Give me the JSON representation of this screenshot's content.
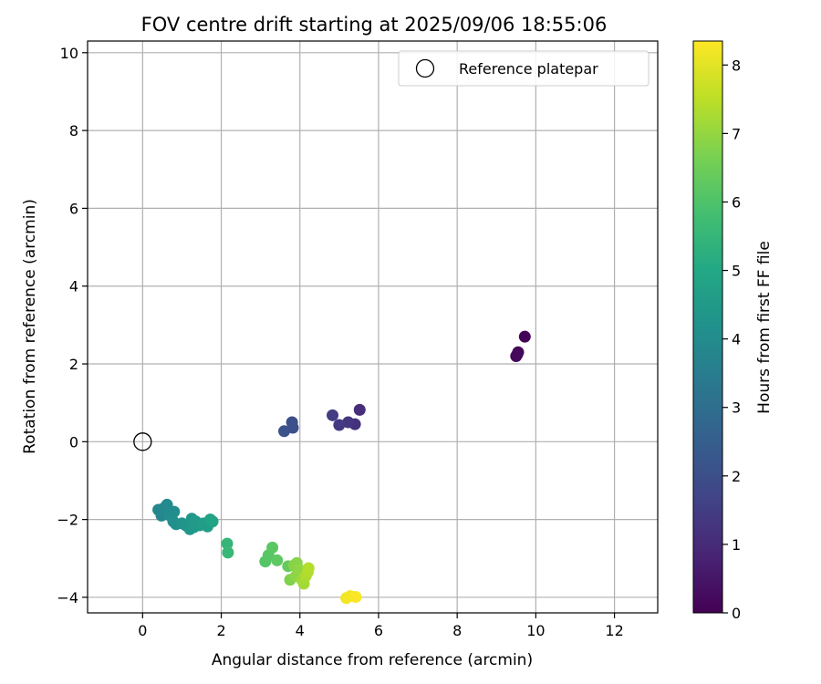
{
  "chart_data": {
    "type": "scatter",
    "title": "FOV centre drift starting at 2025/09/06 18:55:06",
    "xlabel": "Angular distance from reference (arcmin)",
    "ylabel": "Rotation from reference (arcmin)",
    "xlim": [
      -1.4,
      13.1
    ],
    "ylim": [
      -4.4,
      10.3
    ],
    "xticks": [
      0,
      2,
      4,
      6,
      8,
      10,
      12
    ],
    "yticks": [
      -4,
      -2,
      0,
      2,
      4,
      6,
      8,
      10
    ],
    "grid": true,
    "legend": {
      "position": "top-right",
      "entries": [
        "Reference platepar"
      ]
    },
    "reference": {
      "name": "Reference platepar",
      "x": 0,
      "y": 0
    },
    "colorbar": {
      "label": "Hours from first FF file",
      "min": 0,
      "max": 8.35,
      "ticks": [
        0,
        1,
        2,
        3,
        4,
        5,
        6,
        7,
        8
      ],
      "colormap": "viridis"
    },
    "points": [
      {
        "x": 9.72,
        "y": 2.7,
        "t": 0.05
      },
      {
        "x": 9.55,
        "y": 2.3,
        "t": 0.1
      },
      {
        "x": 9.5,
        "y": 2.2,
        "t": 0.15
      },
      {
        "x": 9.53,
        "y": 2.25,
        "t": 0.2
      },
      {
        "x": 5.52,
        "y": 0.82,
        "t": 1.1
      },
      {
        "x": 5.4,
        "y": 0.45,
        "t": 1.2
      },
      {
        "x": 5.23,
        "y": 0.5,
        "t": 1.3
      },
      {
        "x": 5.0,
        "y": 0.43,
        "t": 1.4
      },
      {
        "x": 4.83,
        "y": 0.68,
        "t": 1.5
      },
      {
        "x": 3.8,
        "y": 0.5,
        "t": 2.0
      },
      {
        "x": 3.82,
        "y": 0.36,
        "t": 2.05
      },
      {
        "x": 3.6,
        "y": 0.27,
        "t": 2.1
      },
      {
        "x": 0.4,
        "y": -1.75,
        "t": 3.8
      },
      {
        "x": 0.48,
        "y": -1.9,
        "t": 3.85
      },
      {
        "x": 0.55,
        "y": -1.7,
        "t": 3.9
      },
      {
        "x": 0.62,
        "y": -1.62,
        "t": 3.95
      },
      {
        "x": 0.7,
        "y": -1.9,
        "t": 4.0
      },
      {
        "x": 0.8,
        "y": -1.8,
        "t": 4.05
      },
      {
        "x": 0.78,
        "y": -2.05,
        "t": 4.1
      },
      {
        "x": 0.85,
        "y": -2.12,
        "t": 4.15
      },
      {
        "x": 1.0,
        "y": -2.1,
        "t": 4.25
      },
      {
        "x": 1.1,
        "y": -2.15,
        "t": 4.3
      },
      {
        "x": 1.2,
        "y": -2.25,
        "t": 4.35
      },
      {
        "x": 1.25,
        "y": -1.98,
        "t": 4.4
      },
      {
        "x": 1.3,
        "y": -2.2,
        "t": 4.45
      },
      {
        "x": 1.35,
        "y": -2.05,
        "t": 4.5
      },
      {
        "x": 1.45,
        "y": -2.15,
        "t": 4.55
      },
      {
        "x": 1.55,
        "y": -2.1,
        "t": 4.6
      },
      {
        "x": 1.65,
        "y": -2.18,
        "t": 4.65
      },
      {
        "x": 1.72,
        "y": -2.0,
        "t": 4.75
      },
      {
        "x": 1.78,
        "y": -2.05,
        "t": 4.85
      },
      {
        "x": 2.15,
        "y": -2.62,
        "t": 5.5
      },
      {
        "x": 2.17,
        "y": -2.85,
        "t": 5.55
      },
      {
        "x": 3.12,
        "y": -3.08,
        "t": 6.1
      },
      {
        "x": 3.2,
        "y": -2.92,
        "t": 6.15
      },
      {
        "x": 3.3,
        "y": -2.72,
        "t": 6.2
      },
      {
        "x": 3.42,
        "y": -3.05,
        "t": 6.25
      },
      {
        "x": 3.7,
        "y": -3.2,
        "t": 6.35
      },
      {
        "x": 3.75,
        "y": -3.55,
        "t": 6.75
      },
      {
        "x": 3.85,
        "y": -3.18,
        "t": 6.8
      },
      {
        "x": 3.92,
        "y": -3.12,
        "t": 6.85
      },
      {
        "x": 3.9,
        "y": -3.45,
        "t": 6.9
      },
      {
        "x": 4.0,
        "y": -3.3,
        "t": 6.95
      },
      {
        "x": 4.05,
        "y": -3.55,
        "t": 7.1
      },
      {
        "x": 4.1,
        "y": -3.65,
        "t": 7.2
      },
      {
        "x": 4.15,
        "y": -3.45,
        "t": 7.3
      },
      {
        "x": 4.2,
        "y": -3.35,
        "t": 7.35
      },
      {
        "x": 4.22,
        "y": -3.25,
        "t": 7.4
      },
      {
        "x": 5.18,
        "y": -4.02,
        "t": 8.2
      },
      {
        "x": 5.28,
        "y": -3.97,
        "t": 8.25
      },
      {
        "x": 5.42,
        "y": -3.99,
        "t": 8.3
      }
    ]
  }
}
